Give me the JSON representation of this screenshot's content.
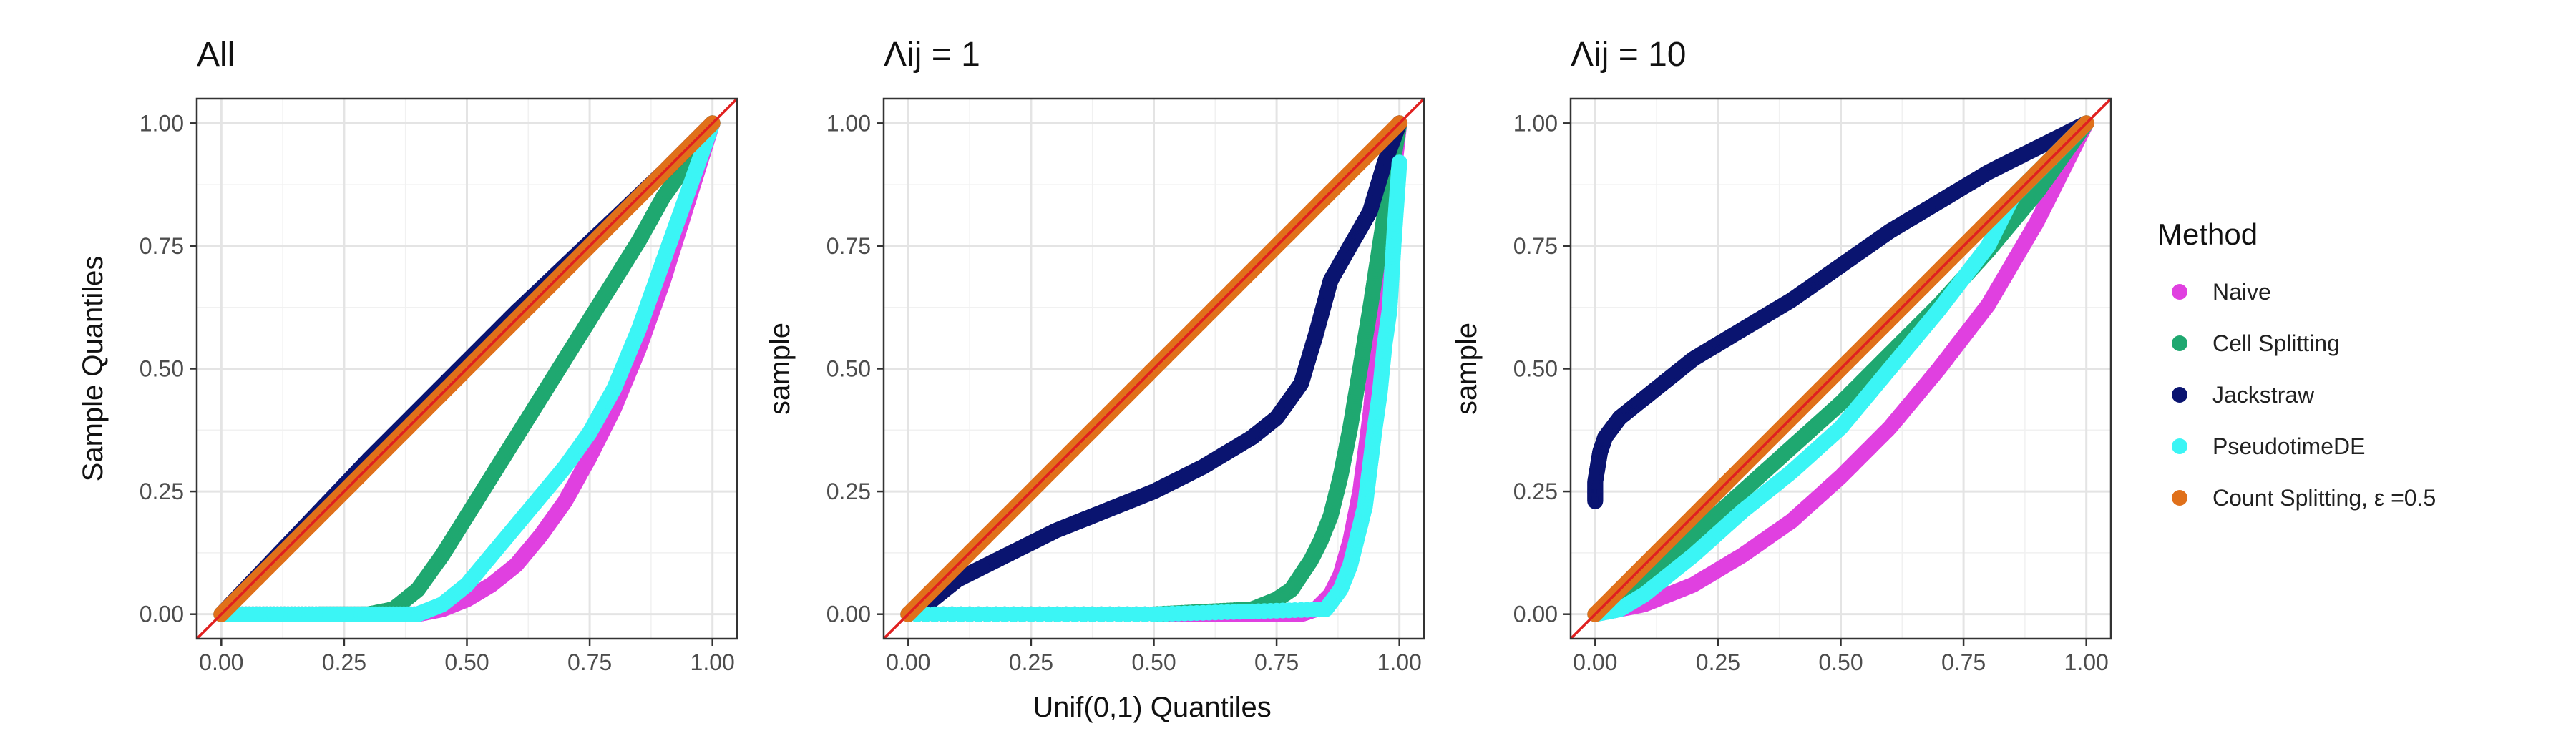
{
  "figure": {
    "x_axis_label": "Unif(0,1) Quantiles",
    "tick_labels": [
      "0.00",
      "0.25",
      "0.50",
      "0.75",
      "1.00"
    ]
  },
  "legend": {
    "title": "Method",
    "placement": "right",
    "items": [
      {
        "label": "Naive",
        "color": "#E040E0"
      },
      {
        "label": "Cell Splitting",
        "color": "#1FA870"
      },
      {
        "label": "Jackstraw",
        "color": "#0A1470"
      },
      {
        "label": "PseudotimeDE",
        "color": "#3BF5F5"
      },
      {
        "label": "Count Splitting, ε =0.5",
        "color": "#E0701A"
      }
    ]
  },
  "reference_line": {
    "color": "#E02020",
    "slope": 1,
    "intercept": 0
  },
  "chart_data": [
    {
      "type": "scatter",
      "title": "All",
      "ylabel": "Sample Quantiles",
      "xlim": [
        -0.05,
        1.05
      ],
      "ylim": [
        -0.05,
        1.05
      ],
      "grid": true,
      "series": [
        {
          "name": "Naive",
          "x": [
            0.0,
            0.2,
            0.4,
            0.45,
            0.5,
            0.55,
            0.6,
            0.65,
            0.7,
            0.75,
            0.8,
            0.85,
            0.9,
            0.95,
            1.0
          ],
          "y": [
            0.0,
            0.0,
            0.0,
            0.01,
            0.03,
            0.06,
            0.1,
            0.16,
            0.23,
            0.32,
            0.42,
            0.54,
            0.68,
            0.84,
            1.0
          ]
        },
        {
          "name": "Cell Splitting",
          "x": [
            0.0,
            0.2,
            0.3,
            0.35,
            0.4,
            0.45,
            0.5,
            0.55,
            0.6,
            0.65,
            0.7,
            0.75,
            0.8,
            0.85,
            0.9,
            0.95,
            1.0
          ],
          "y": [
            0.0,
            0.0,
            0.0,
            0.01,
            0.05,
            0.12,
            0.2,
            0.28,
            0.36,
            0.44,
            0.52,
            0.6,
            0.68,
            0.76,
            0.85,
            0.92,
            1.0
          ]
        },
        {
          "name": "Jackstraw",
          "x": [
            0.0,
            0.1,
            0.2,
            0.3,
            0.4,
            0.5,
            0.6,
            0.7,
            0.8,
            0.9,
            1.0
          ],
          "y": [
            0.0,
            0.105,
            0.21,
            0.315,
            0.415,
            0.515,
            0.615,
            0.71,
            0.805,
            0.9,
            1.0
          ]
        },
        {
          "name": "PseudotimeDE",
          "x": [
            0.0,
            0.2,
            0.4,
            0.45,
            0.5,
            0.55,
            0.6,
            0.65,
            0.7,
            0.75,
            0.8,
            0.85,
            0.9,
            0.95,
            1.0
          ],
          "y": [
            0.0,
            0.0,
            0.0,
            0.02,
            0.06,
            0.12,
            0.18,
            0.24,
            0.3,
            0.37,
            0.46,
            0.58,
            0.72,
            0.86,
            1.0
          ]
        },
        {
          "name": "Count Splitting, ε =0.5",
          "x": [
            0.0,
            0.1,
            0.2,
            0.3,
            0.4,
            0.5,
            0.6,
            0.7,
            0.8,
            0.9,
            1.0
          ],
          "y": [
            0.0,
            0.1,
            0.2,
            0.3,
            0.4,
            0.5,
            0.6,
            0.7,
            0.8,
            0.9,
            1.0
          ]
        }
      ]
    },
    {
      "type": "scatter",
      "title": "Λij = 1",
      "ylabel": "sample",
      "xlim": [
        -0.05,
        1.05
      ],
      "ylim": [
        -0.05,
        1.05
      ],
      "grid": true,
      "series": [
        {
          "name": "Naive",
          "x": [
            0.0,
            0.5,
            0.8,
            0.83,
            0.86,
            0.88,
            0.9,
            0.92,
            0.94,
            0.96,
            0.98,
            1.0
          ],
          "y": [
            0.0,
            0.0,
            0.0,
            0.01,
            0.04,
            0.08,
            0.15,
            0.25,
            0.4,
            0.6,
            0.82,
            1.0
          ]
        },
        {
          "name": "Cell Splitting",
          "x": [
            0.0,
            0.5,
            0.7,
            0.75,
            0.78,
            0.8,
            0.82,
            0.84,
            0.86,
            0.88,
            0.9,
            0.92,
            0.94,
            0.96,
            0.98,
            1.0
          ],
          "y": [
            0.0,
            0.0,
            0.01,
            0.03,
            0.05,
            0.08,
            0.11,
            0.15,
            0.2,
            0.28,
            0.38,
            0.5,
            0.62,
            0.75,
            0.88,
            1.0
          ]
        },
        {
          "name": "Jackstraw",
          "x": [
            0.0,
            0.05,
            0.1,
            0.2,
            0.3,
            0.4,
            0.5,
            0.6,
            0.7,
            0.75,
            0.8,
            0.83,
            0.86,
            0.9,
            0.94,
            0.97,
            1.0
          ],
          "y": [
            0.0,
            0.03,
            0.07,
            0.12,
            0.17,
            0.21,
            0.25,
            0.3,
            0.36,
            0.4,
            0.47,
            0.57,
            0.68,
            0.75,
            0.82,
            0.92,
            1.0
          ]
        },
        {
          "name": "PseudotimeDE",
          "x": [
            0.0,
            0.5,
            0.85,
            0.88,
            0.9,
            0.92,
            0.93,
            0.94,
            0.95,
            0.96,
            0.97,
            0.98,
            0.99,
            1.0
          ],
          "y": [
            0.0,
            0.0,
            0.01,
            0.05,
            0.1,
            0.18,
            0.22,
            0.3,
            0.38,
            0.45,
            0.55,
            0.62,
            0.78,
            0.92
          ]
        },
        {
          "name": "Count Splitting, ε =0.5",
          "x": [
            0.0,
            0.1,
            0.2,
            0.3,
            0.4,
            0.5,
            0.6,
            0.7,
            0.8,
            0.9,
            1.0
          ],
          "y": [
            0.0,
            0.1,
            0.2,
            0.3,
            0.4,
            0.5,
            0.6,
            0.7,
            0.8,
            0.9,
            1.0
          ]
        }
      ]
    },
    {
      "type": "scatter",
      "title": "Λij = 10",
      "ylabel": "sample",
      "xlim": [
        -0.05,
        1.05
      ],
      "ylim": [
        -0.05,
        1.05
      ],
      "grid": true,
      "series": [
        {
          "name": "Naive",
          "x": [
            0.0,
            0.1,
            0.2,
            0.3,
            0.4,
            0.5,
            0.6,
            0.7,
            0.8,
            0.9,
            1.0
          ],
          "y": [
            0.0,
            0.02,
            0.06,
            0.12,
            0.19,
            0.28,
            0.38,
            0.5,
            0.63,
            0.8,
            1.0
          ]
        },
        {
          "name": "Cell Splitting",
          "x": [
            0.0,
            0.1,
            0.2,
            0.3,
            0.4,
            0.5,
            0.6,
            0.7,
            0.8,
            0.9,
            1.0
          ],
          "y": [
            0.0,
            0.07,
            0.16,
            0.25,
            0.34,
            0.43,
            0.53,
            0.63,
            0.74,
            0.86,
            1.0
          ]
        },
        {
          "name": "Jackstraw",
          "x": [
            0.0,
            0.0,
            0.01,
            0.02,
            0.05,
            0.1,
            0.15,
            0.2,
            0.3,
            0.4,
            0.5,
            0.6,
            0.7,
            0.8,
            0.9,
            1.0
          ],
          "y": [
            0.23,
            0.27,
            0.33,
            0.36,
            0.4,
            0.44,
            0.48,
            0.52,
            0.58,
            0.64,
            0.71,
            0.78,
            0.84,
            0.9,
            0.95,
            1.0
          ]
        },
        {
          "name": "PseudotimeDE",
          "x": [
            0.0,
            0.05,
            0.1,
            0.2,
            0.3,
            0.4,
            0.5,
            0.6,
            0.7,
            0.8,
            0.85,
            0.9,
            0.95,
            1.0
          ],
          "y": [
            0.0,
            0.01,
            0.04,
            0.12,
            0.21,
            0.29,
            0.38,
            0.5,
            0.62,
            0.75,
            0.85,
            0.9,
            0.95,
            1.0
          ]
        },
        {
          "name": "Count Splitting, ε =0.5",
          "x": [
            0.0,
            0.1,
            0.2,
            0.3,
            0.4,
            0.5,
            0.6,
            0.7,
            0.8,
            0.9,
            1.0
          ],
          "y": [
            0.0,
            0.1,
            0.2,
            0.3,
            0.4,
            0.5,
            0.6,
            0.7,
            0.8,
            0.9,
            1.0
          ]
        }
      ]
    }
  ]
}
